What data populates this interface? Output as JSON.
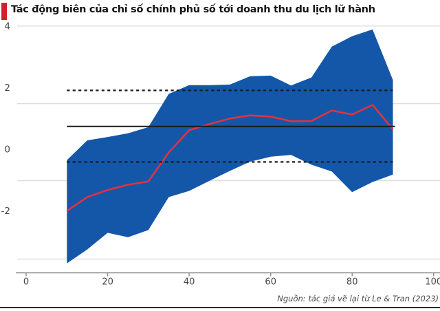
{
  "header": {
    "title": "Tác động biên của chỉ số chính phủ số tới doanh thu du lịch lữ hành"
  },
  "footer": {
    "source": "Nguồn: tác giả vẽ lại từ Le & Tran (2023)"
  },
  "colors": {
    "band_blue": "#1457a8",
    "line_red": "#e1323f",
    "accent_red": "#d4202a",
    "reference_black": "#1a1a1a",
    "gridline_gray": "#d8d8d8",
    "axis_gray": "#8a8a8a",
    "tick_label_gray": "#474747"
  },
  "chart_data": {
    "type": "area",
    "title": "Tác động biên của chỉ số chính phủ số tới doanh thu du lịch lữ hành",
    "xlabel": "",
    "ylabel": "",
    "x": [
      10,
      15,
      20,
      25,
      30,
      35,
      40,
      45,
      50,
      55,
      60,
      65,
      70,
      75,
      80,
      85,
      90
    ],
    "series": [
      {
        "name": "marginal_effect",
        "role": "line",
        "values": [
          -2.0,
          -1.55,
          -1.32,
          -1.15,
          -1.04,
          -0.1,
          0.62,
          0.82,
          1.0,
          1.1,
          1.06,
          0.91,
          0.92,
          1.26,
          1.13,
          1.44,
          0.65
        ]
      },
      {
        "name": "ci_upper",
        "role": "band-upper-edge",
        "values": [
          -0.35,
          0.29,
          0.4,
          0.52,
          0.72,
          1.8,
          2.08,
          2.08,
          2.1,
          2.37,
          2.39,
          2.07,
          2.33,
          3.33,
          3.67,
          3.89,
          2.25
        ]
      },
      {
        "name": "ci_lower",
        "role": "band-lower-edge",
        "values": [
          -3.7,
          -3.25,
          -2.71,
          -2.85,
          -2.62,
          -1.55,
          -1.35,
          -1.02,
          -0.7,
          -0.4,
          -0.24,
          -0.18,
          -0.5,
          -0.72,
          -1.39,
          -1.06,
          -0.82
        ]
      }
    ],
    "reference_lines": {
      "solid_mean": 0.74,
      "dashed_upper": 1.91,
      "dashed_lower": -0.41
    },
    "y_ticks": [
      4,
      2,
      0,
      -2
    ],
    "x_ticks": [
      0,
      20,
      40,
      60,
      80,
      100
    ],
    "y_gridlines_at": [
      4,
      1.48,
      -1.02,
      -3.56
    ],
    "xlim": [
      0,
      100
    ],
    "ylim": [
      -4,
      4
    ],
    "grid": "horizontal-only",
    "legend": "none"
  }
}
